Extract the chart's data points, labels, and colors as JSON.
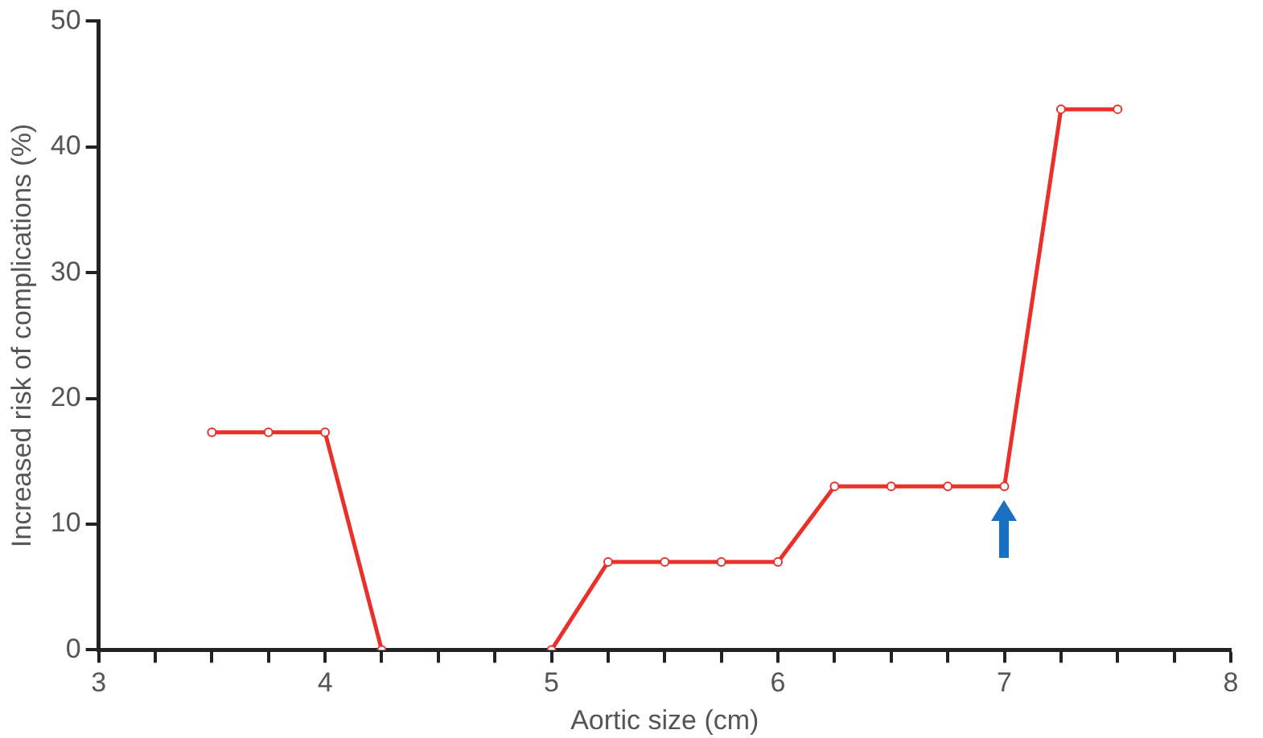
{
  "chart_data": {
    "type": "line",
    "xlabel": "Aortic size (cm)",
    "ylabel": "Increased risk of complications (%)",
    "x": [
      3.5,
      3.75,
      4.0,
      4.25,
      4.5,
      5.0,
      5.25,
      5.5,
      5.75,
      6.0,
      6.25,
      6.5,
      6.75,
      7.0,
      7.25,
      7.5
    ],
    "series": [
      {
        "color": "#e8312a",
        "values": [
          17.3,
          17.3,
          17.3,
          0,
          null,
          0,
          7,
          7,
          7,
          7,
          13,
          13,
          13,
          13,
          43,
          43
        ]
      }
    ],
    "xlim": [
      3,
      8
    ],
    "xticks": [
      3,
      4,
      5,
      6,
      7,
      8
    ],
    "ylim": [
      0,
      50
    ],
    "yticks": [
      0,
      10,
      20,
      30,
      40,
      50
    ],
    "grid": false,
    "legend": false,
    "marker": "circle",
    "line_style": "solid"
  }
}
